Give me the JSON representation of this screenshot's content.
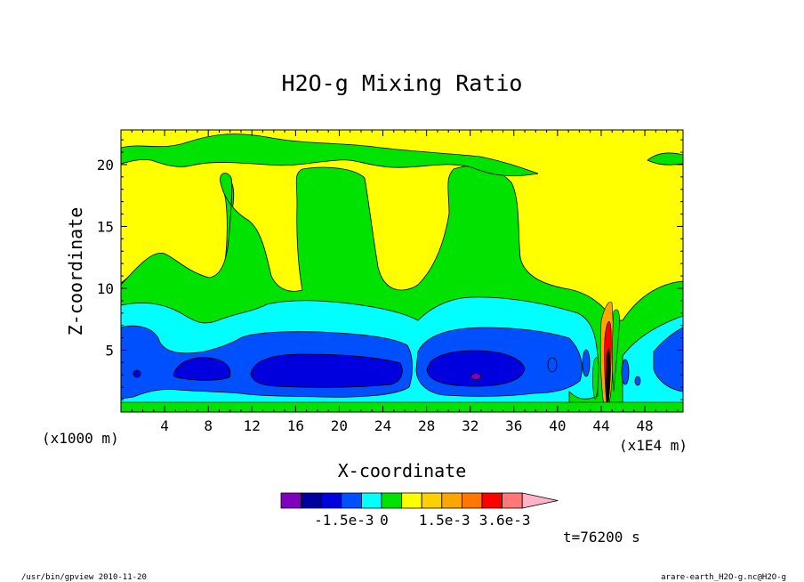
{
  "chart_data": {
    "type": "heatmap",
    "title": "H2O-g Mixing Ratio",
    "xlabel": "X-coordinate",
    "ylabel": "Z-coordinate",
    "x_unit_left": "(x1000 m)",
    "x_unit_right": "(x1E4 m)",
    "xlim": [
      0,
      51.5
    ],
    "ylim": [
      0,
      22.8
    ],
    "x_ticks": [
      4,
      8,
      12,
      16,
      20,
      24,
      28,
      32,
      36,
      40,
      44,
      48
    ],
    "y_ticks": [
      5,
      10,
      15,
      20
    ],
    "colorbar": {
      "colors": [
        "#7f00bf",
        "#00009f",
        "#0000df",
        "#0050ff",
        "#00ffff",
        "#00e300",
        "#ffff00",
        "#ffd000",
        "#ffa500",
        "#ff7700",
        "#ff0000",
        "#ff7777",
        "#ffb3c8"
      ],
      "tick_labels": [
        "-1.5e-3",
        "0",
        "1.5e-3",
        "3.6e-3"
      ]
    },
    "background_color": "#ffff00",
    "time_label": "t=76200 s",
    "regions": [
      {
        "level": "green",
        "color": "#00e300",
        "desc": "moist layer below z~10 and plumes rising to z~22"
      },
      {
        "level": "cyan",
        "color": "#00ffff",
        "desc": "layer z~0.5-8.5"
      },
      {
        "level": "blue",
        "color": "#0050ff",
        "desc": "cells x~1-11, 13-27, 28-43, 48-51.5 at z~1.5-6.5"
      },
      {
        "level": "dark-blue",
        "color": "#0000df",
        "desc": "cores x~4-9.5, 12-26, 28-37 at z~2-5"
      },
      {
        "level": "purple",
        "color": "#7f00bf",
        "desc": "minimum near x=32, z=3"
      }
    ]
  },
  "footer": {
    "left": "/usr/bin/gpview  2010-11-20",
    "right": "arare-earth_H2O-g.nc@H2O-g"
  }
}
